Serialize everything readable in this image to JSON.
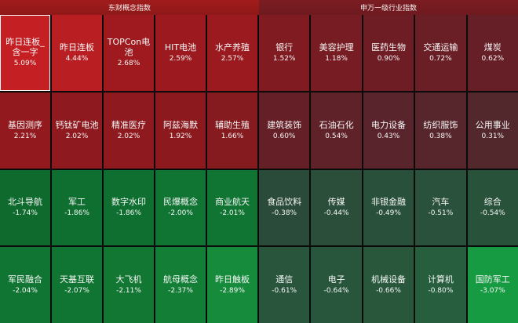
{
  "headers": {
    "left": "东财概念指数",
    "right": "申万一级行业指数"
  },
  "concepts": [
    {
      "name": "昨日连板_含一字",
      "pct": "5.09%",
      "color": "#c41f22",
      "selected": true
    },
    {
      "name": "昨日连板",
      "pct": "4.44%",
      "color": "#b81e22"
    },
    {
      "name": "TOPCon电池",
      "pct": "2.68%",
      "color": "#9e1a1f"
    },
    {
      "name": "HIT电池",
      "pct": "2.59%",
      "color": "#9c1a1f"
    },
    {
      "name": "水产养殖",
      "pct": "2.57%",
      "color": "#9a1a1f"
    },
    {
      "name": "基因测序",
      "pct": "2.21%",
      "color": "#921a1f"
    },
    {
      "name": "钙钛矿电池",
      "pct": "2.02%",
      "color": "#8e191e"
    },
    {
      "name": "精准医疗",
      "pct": "2.02%",
      "color": "#8e191e"
    },
    {
      "name": "阿兹海默",
      "pct": "1.92%",
      "color": "#8b191e"
    },
    {
      "name": "辅助生殖",
      "pct": "1.66%",
      "color": "#851a1f"
    },
    {
      "name": "北斗导航",
      "pct": "-1.74%",
      "color": "#0f6a2e"
    },
    {
      "name": "军工",
      "pct": "-1.86%",
      "color": "#0f6f30"
    },
    {
      "name": "数字水印",
      "pct": "-1.86%",
      "color": "#0f6f30"
    },
    {
      "name": "民爆概念",
      "pct": "-2.00%",
      "color": "#107432"
    },
    {
      "name": "商业航天",
      "pct": "-2.01%",
      "color": "#107432"
    },
    {
      "name": "军民融合",
      "pct": "-2.04%",
      "color": "#107532"
    },
    {
      "name": "天基互联",
      "pct": "-2.07%",
      "color": "#107532"
    },
    {
      "name": "大飞机",
      "pct": "-2.11%",
      "color": "#117733"
    },
    {
      "name": "航母概念",
      "pct": "-2.37%",
      "color": "#127e36"
    },
    {
      "name": "昨日触板",
      "pct": "-2.89%",
      "color": "#158b3b"
    }
  ],
  "industries": [
    {
      "name": "银行",
      "pct": "1.52%",
      "color": "#7f1b21"
    },
    {
      "name": "美容护理",
      "pct": "1.18%",
      "color": "#761c22"
    },
    {
      "name": "医药生物",
      "pct": "0.90%",
      "color": "#6e1d24"
    },
    {
      "name": "交通运输",
      "pct": "0.72%",
      "color": "#6a1e25"
    },
    {
      "name": "煤炭",
      "pct": "0.62%",
      "color": "#661f27"
    },
    {
      "name": "建筑装饰",
      "pct": "0.60%",
      "color": "#651f27"
    },
    {
      "name": "石油石化",
      "pct": "0.54%",
      "color": "#5f2229"
    },
    {
      "name": "电力设备",
      "pct": "0.43%",
      "color": "#59242b"
    },
    {
      "name": "纺织服饰",
      "pct": "0.38%",
      "color": "#56262c"
    },
    {
      "name": "公用事业",
      "pct": "0.31%",
      "color": "#52282d"
    },
    {
      "name": "食品饮料",
      "pct": "-0.38%",
      "color": "#2a4b39"
    },
    {
      "name": "传媒",
      "pct": "-0.44%",
      "color": "#2a4e3a"
    },
    {
      "name": "非银金融",
      "pct": "-0.49%",
      "color": "#29503a"
    },
    {
      "name": "汽车",
      "pct": "-0.51%",
      "color": "#29513b"
    },
    {
      "name": "综合",
      "pct": "-0.54%",
      "color": "#29523b"
    },
    {
      "name": "通信",
      "pct": "-0.61%",
      "color": "#28553c"
    },
    {
      "name": "电子",
      "pct": "-0.64%",
      "color": "#28563c"
    },
    {
      "name": "机械设备",
      "pct": "-0.66%",
      "color": "#28573c"
    },
    {
      "name": "计算机",
      "pct": "-0.80%",
      "color": "#265e3e"
    },
    {
      "name": "国防军工",
      "pct": "-3.07%",
      "color": "#169a42"
    }
  ]
}
